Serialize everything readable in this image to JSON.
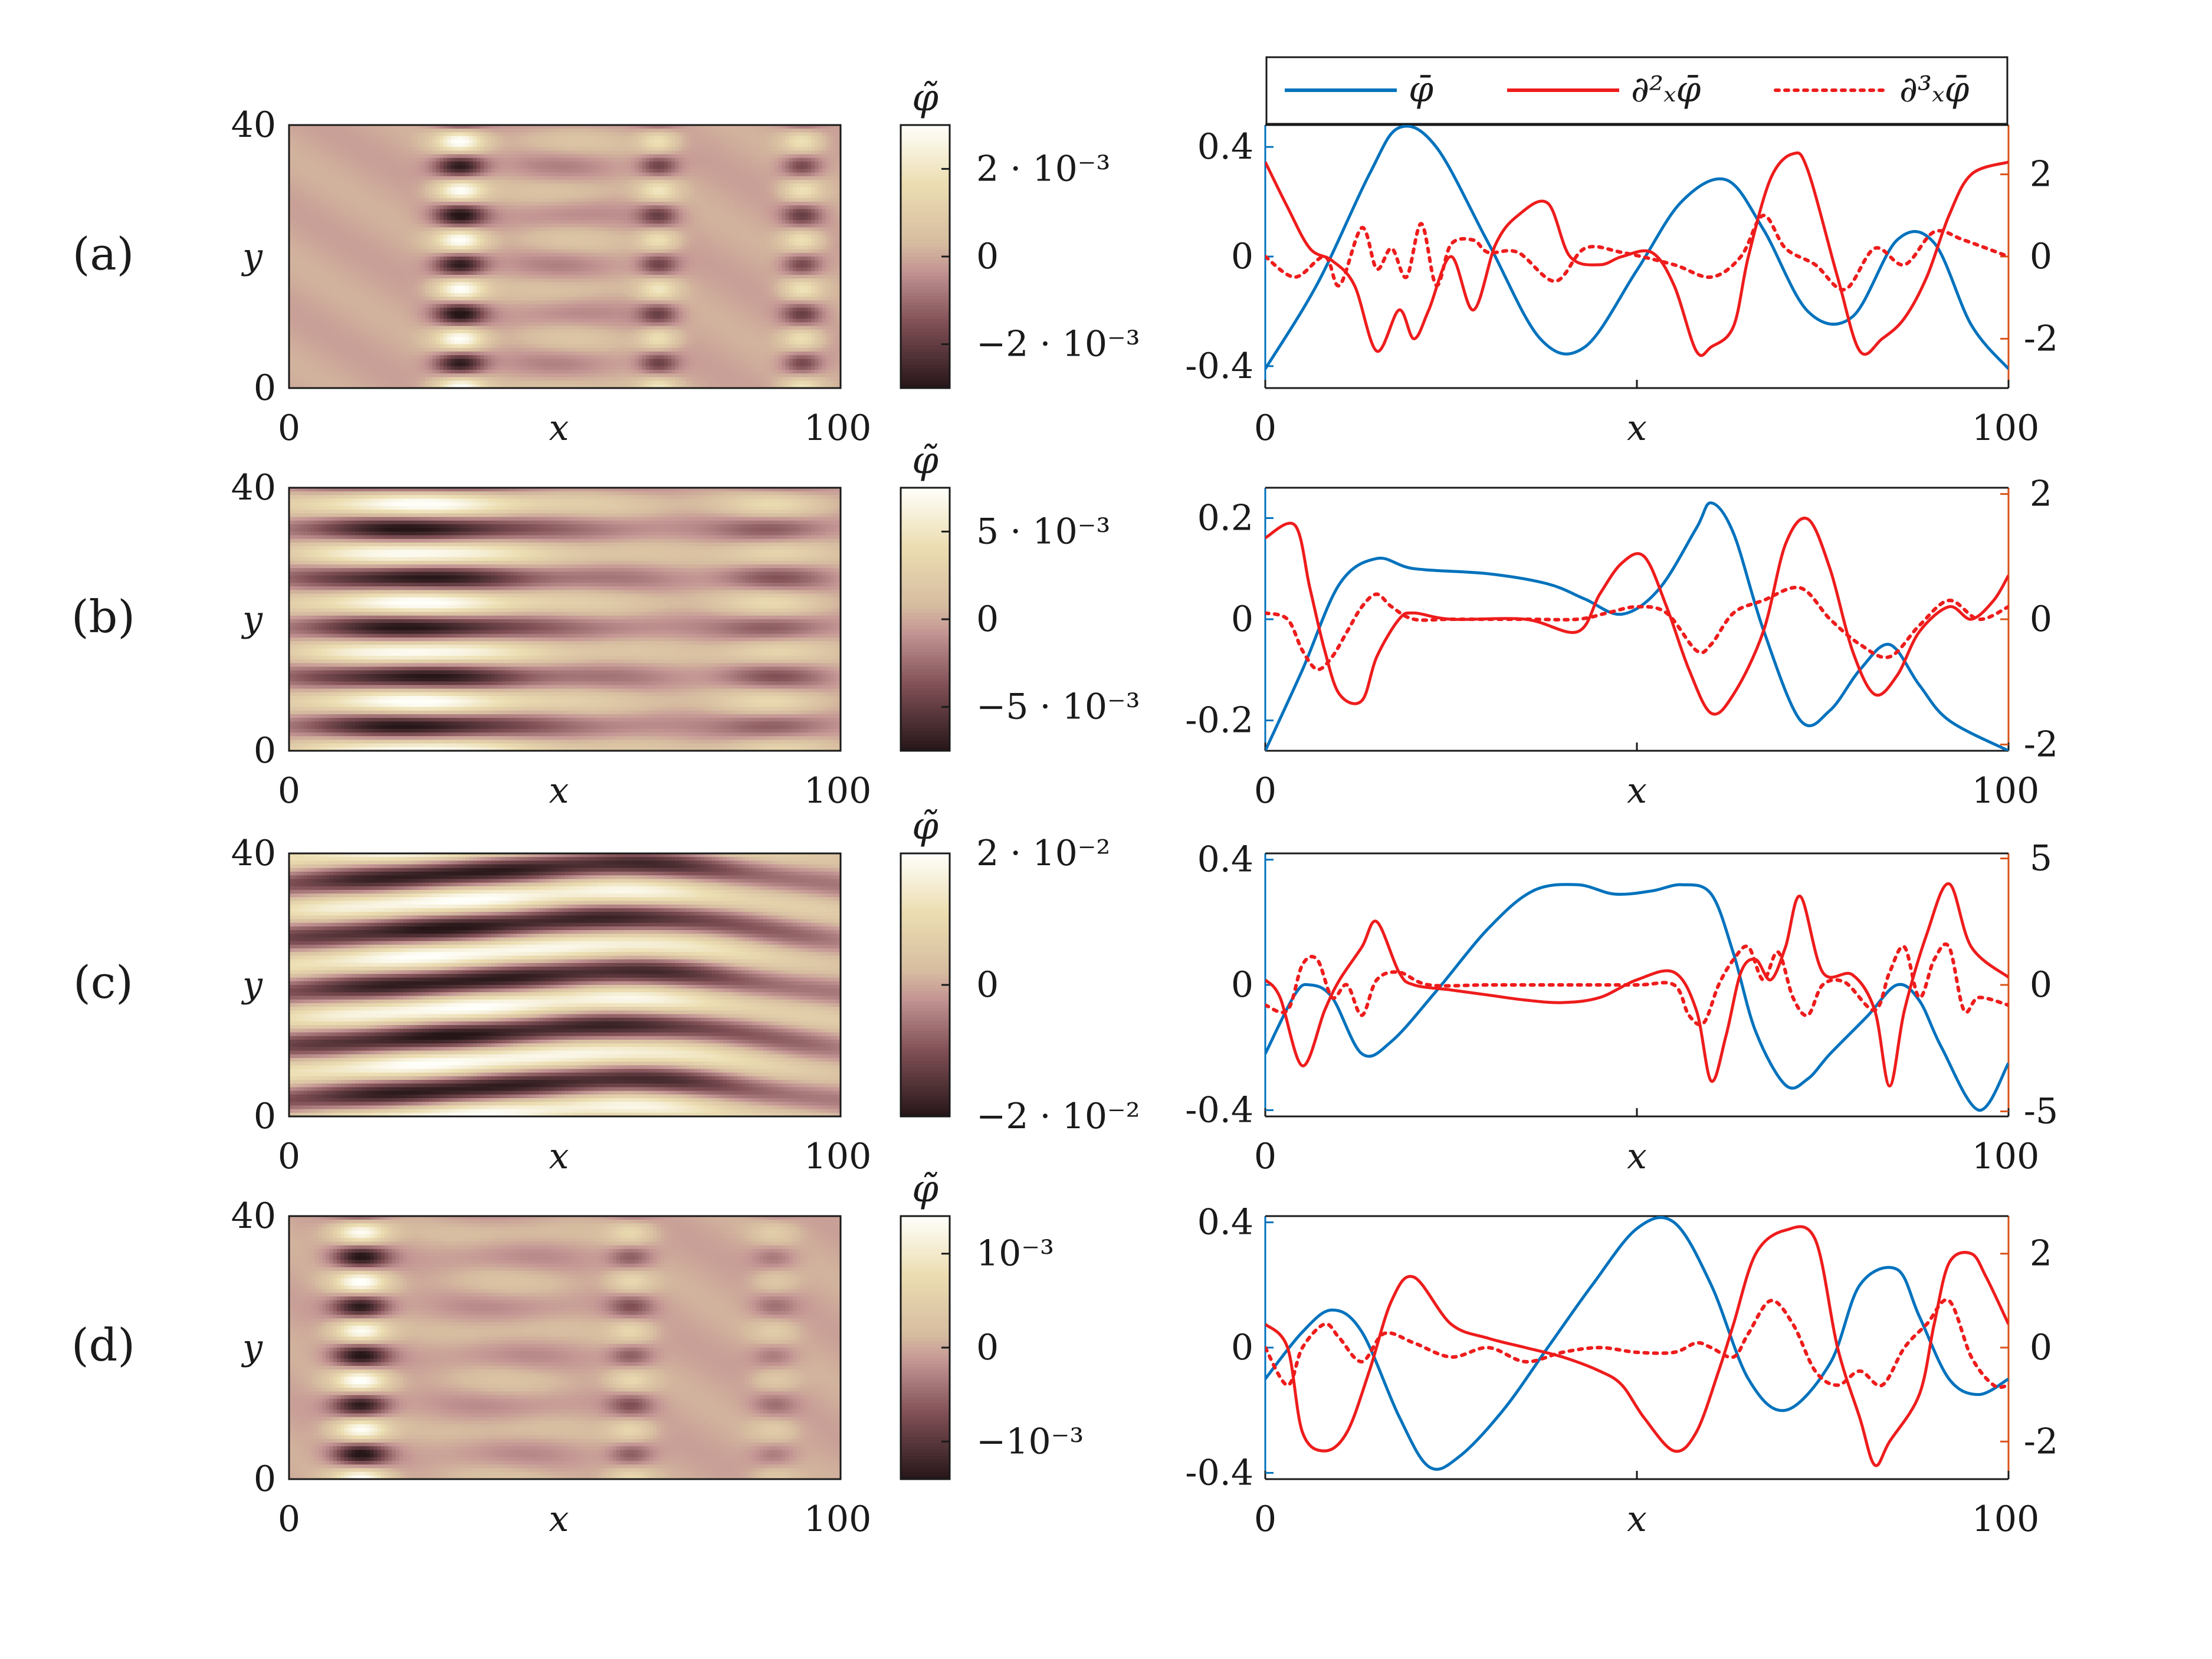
{
  "figure": {
    "rows": [
      {
        "label": "(a)"
      },
      {
        "label": "(b)"
      },
      {
        "label": "(c)"
      },
      {
        "label": "(d)"
      }
    ],
    "legend": {
      "phi_bar": "φ̄",
      "d2": "∂²ₓφ̄",
      "d3": "∂³ₓφ̄"
    },
    "colors": {
      "blue": "#0072BD",
      "red": "#EE1C1C",
      "orange_axis": "#D95319",
      "axis": "#1a1a1a"
    }
  },
  "chart_data": [
    {
      "type": "heatmap",
      "panel": "a-map",
      "xlabel": "x",
      "ylabel": "y",
      "xlim": [
        0,
        100
      ],
      "ylim": [
        0,
        40
      ],
      "x_ticks": [
        "0",
        "100"
      ],
      "y_ticks": [
        "0",
        "40"
      ],
      "colorbar": {
        "title": "φ̃",
        "ticks": [
          "2 · 10⁻³",
          "0",
          "−2 · 10⁻³"
        ],
        "range": [
          -0.003,
          0.003
        ]
      },
      "bands": [
        {
          "x": 31,
          "width": 4.5,
          "amp": 1.0,
          "ky": 7.5,
          "tilt": 0.0
        },
        {
          "x": 67,
          "width": 3.5,
          "amp": 0.6,
          "ky": 7.5,
          "tilt": 0.0
        },
        {
          "x": 93,
          "width": 3.5,
          "amp": 0.6,
          "ky": 7.5,
          "tilt": 0.0
        },
        {
          "x": 50,
          "width": 12,
          "amp": 0.18,
          "ky": 7.5,
          "tilt": 0.0
        }
      ]
    },
    {
      "type": "line",
      "panel": "a-profile",
      "xlabel": "x",
      "xlim": [
        0,
        100
      ],
      "x_ticks": [
        "0",
        "100"
      ],
      "y_left": {
        "range": [
          -0.48,
          0.48
        ],
        "ticks": [
          "0.4",
          "0",
          "-0.4"
        ]
      },
      "y_right": {
        "range": [
          -3.2,
          3.2
        ],
        "ticks": [
          "2",
          "0",
          "-2"
        ]
      },
      "series": [
        {
          "name": "φ̄",
          "axis": "left",
          "style": "solid-blue",
          "x": [
            0,
            7,
            14,
            18,
            23,
            30,
            37,
            43,
            50,
            56,
            62,
            67,
            73,
            79,
            85,
            90,
            95,
            100
          ],
          "y": [
            -0.41,
            -0.1,
            0.3,
            0.47,
            0.4,
            0.05,
            -0.3,
            -0.33,
            -0.05,
            0.2,
            0.28,
            0.1,
            -0.2,
            -0.22,
            0.06,
            0.05,
            -0.25,
            -0.41
          ]
        },
        {
          "name": "∂²ₓφ̄",
          "axis": "right",
          "style": "solid-red",
          "x": [
            0,
            3,
            6,
            9,
            12,
            15,
            18,
            20,
            22,
            25,
            28,
            31,
            34,
            38,
            41,
            45,
            48,
            52,
            55,
            58,
            60,
            63,
            65,
            68,
            71,
            73,
            77,
            80,
            83,
            86,
            89,
            92,
            95,
            100
          ],
          "y": [
            2.3,
            1.2,
            0.2,
            -0.1,
            -0.7,
            -2.3,
            -1.3,
            -2.0,
            -1.3,
            0,
            -1.3,
            0.3,
            1.0,
            1.3,
            0,
            -0.2,
            0,
            0.1,
            -0.7,
            -2.3,
            -2.2,
            -1.7,
            0,
            1.9,
            2.5,
            2.1,
            -0.5,
            -2.3,
            -2.0,
            -1.5,
            -0.5,
            1.0,
            2.0,
            2.3
          ]
        },
        {
          "name": "∂³ₓφ̄",
          "axis": "right",
          "style": "dotted-red",
          "x": [
            0,
            4,
            8,
            10,
            13,
            15,
            17,
            19,
            21,
            23,
            25,
            28,
            30,
            34,
            39,
            43,
            48,
            55,
            60,
            64,
            67,
            70,
            74,
            78,
            82,
            86,
            90,
            94,
            100
          ],
          "y": [
            0,
            -0.5,
            0,
            -0.7,
            0.7,
            -0.3,
            0.2,
            -0.5,
            0.8,
            -0.7,
            0.3,
            0.4,
            0.1,
            0.1,
            -0.6,
            0.2,
            0.1,
            -0.2,
            -0.5,
            0,
            1.0,
            0.2,
            -0.2,
            -0.8,
            0.2,
            -0.2,
            0.6,
            0.4,
            0
          ]
        }
      ]
    },
    {
      "type": "heatmap",
      "panel": "b-map",
      "xlabel": "x",
      "ylabel": "y",
      "xlim": [
        0,
        100
      ],
      "ylim": [
        0,
        40
      ],
      "x_ticks": [
        "0",
        "100"
      ],
      "y_ticks": [
        "0",
        "40"
      ],
      "colorbar": {
        "title": "φ̃",
        "ticks": [
          "5 · 10⁻³",
          "0",
          "−5 · 10⁻³"
        ],
        "range": [
          -0.0075,
          0.0075
        ]
      },
      "bands": [
        {
          "x": 23,
          "width": 22,
          "amp": 1.0,
          "ky": 7.5,
          "tilt": 0.0
        },
        {
          "x": 88,
          "width": 10,
          "amp": 0.45,
          "ky": 7.5,
          "tilt": 0.0
        },
        {
          "x": 60,
          "width": 16,
          "amp": 0.18,
          "ky": 7.5,
          "tilt": 0.0
        }
      ]
    },
    {
      "type": "line",
      "panel": "b-profile",
      "xlabel": "x",
      "xlim": [
        0,
        100
      ],
      "x_ticks": [
        "0",
        "100"
      ],
      "y_left": {
        "range": [
          -0.26,
          0.26
        ],
        "ticks": [
          "0.2",
          "0",
          "-0.2"
        ]
      },
      "y_right": {
        "range": [
          -2.1,
          2.1
        ],
        "ticks": [
          "2",
          "0",
          "-2"
        ]
      },
      "series": [
        {
          "name": "φ̄",
          "axis": "left",
          "style": "solid-blue",
          "x": [
            0,
            5,
            10,
            15,
            20,
            30,
            38,
            43,
            48,
            53,
            58,
            60,
            63,
            67,
            72,
            76,
            80,
            84,
            88,
            92,
            100
          ],
          "y": [
            -0.26,
            -0.1,
            0.07,
            0.12,
            0.1,
            0.09,
            0.07,
            0.04,
            0.01,
            0.06,
            0.18,
            0.23,
            0.17,
            -0.02,
            -0.2,
            -0.18,
            -0.1,
            -0.05,
            -0.13,
            -0.2,
            -0.26
          ]
        },
        {
          "name": "∂²ₓφ̄",
          "axis": "right",
          "style": "solid-red",
          "x": [
            0,
            4,
            6,
            8,
            10,
            13,
            15,
            18,
            20,
            25,
            35,
            42,
            45,
            48,
            51,
            54,
            57,
            60,
            63,
            67,
            70,
            73,
            76,
            79,
            82,
            85,
            88,
            92,
            95,
            98,
            100
          ],
          "y": [
            1.3,
            1.5,
            0.5,
            -0.5,
            -1.2,
            -1.3,
            -0.6,
            0,
            0.1,
            0,
            0,
            -0.2,
            0.4,
            0.9,
            1.0,
            0.2,
            -0.8,
            -1.5,
            -1.2,
            -0.2,
            1.2,
            1.6,
            0.8,
            -0.5,
            -1.2,
            -0.9,
            -0.2,
            0.2,
            0.0,
            0.3,
            0.7
          ]
        },
        {
          "name": "∂³ₓφ̄",
          "axis": "right",
          "style": "dotted-red",
          "x": [
            0,
            3,
            5,
            7,
            9,
            11,
            13,
            15,
            17,
            20,
            25,
            35,
            42,
            46,
            50,
            54,
            58,
            60,
            63,
            67,
            72,
            76,
            80,
            84,
            88,
            92,
            96,
            100
          ],
          "y": [
            0.1,
            0.0,
            -0.5,
            -0.8,
            -0.6,
            -0.2,
            0.2,
            0.4,
            0.2,
            0,
            0,
            0,
            0,
            0.1,
            0.2,
            0.1,
            -0.5,
            -0.4,
            0.1,
            0.3,
            0.5,
            0,
            -0.4,
            -0.6,
            -0.1,
            0.3,
            0,
            0.2
          ]
        }
      ]
    },
    {
      "type": "heatmap",
      "panel": "c-map",
      "xlabel": "x",
      "ylabel": "y",
      "xlim": [
        0,
        100
      ],
      "ylim": [
        0,
        40
      ],
      "x_ticks": [
        "0",
        "100"
      ],
      "y_ticks": [
        "0",
        "40"
      ],
      "colorbar": {
        "title": "φ̃",
        "ticks": [
          "2 · 10⁻²",
          "0",
          "−2 · 10⁻²"
        ],
        "range": [
          -0.02,
          0.02
        ]
      },
      "bands": [
        {
          "x": 30,
          "width": 40,
          "amp": 1.0,
          "ky": 8.2,
          "tilt": 0.05
        },
        {
          "x": 80,
          "width": 25,
          "amp": 0.55,
          "ky": 8.2,
          "tilt": -0.08
        }
      ]
    },
    {
      "type": "line",
      "panel": "c-profile",
      "xlabel": "x",
      "xlim": [
        0,
        100
      ],
      "x_ticks": [
        "0",
        "100"
      ],
      "y_left": {
        "range": [
          -0.42,
          0.42
        ],
        "ticks": [
          "0.4",
          "0",
          "-0.4"
        ]
      },
      "y_right": {
        "range": [
          -5.2,
          5.2
        ],
        "ticks": [
          "5",
          "0",
          "-5"
        ]
      },
      "series": [
        {
          "name": "φ̄",
          "axis": "left",
          "style": "solid-blue",
          "x": [
            0,
            4,
            6,
            9,
            13,
            17,
            23,
            30,
            36,
            42,
            47,
            52,
            56,
            60,
            63,
            66,
            70,
            73,
            76,
            81,
            85,
            88,
            91,
            96,
            100
          ],
          "y": [
            -0.22,
            -0.03,
            0.0,
            -0.04,
            -0.22,
            -0.18,
            -0.02,
            0.18,
            0.3,
            0.32,
            0.29,
            0.3,
            0.32,
            0.29,
            0.1,
            -0.15,
            -0.32,
            -0.3,
            -0.22,
            -0.1,
            0.0,
            -0.05,
            -0.2,
            -0.4,
            -0.25
          ]
        },
        {
          "name": "∂²ₓφ̄",
          "axis": "right",
          "style": "solid-red",
          "x": [
            0,
            2,
            5,
            8,
            10,
            13,
            15,
            18,
            20,
            25,
            30,
            35,
            40,
            45,
            50,
            55,
            58,
            60,
            62,
            64,
            66,
            68,
            70,
            72,
            75,
            79,
            82,
            84,
            86,
            89,
            92,
            95,
            100
          ],
          "y": [
            0.2,
            -0.5,
            -3.2,
            -1.0,
            0.2,
            1.5,
            2.5,
            0.5,
            0.0,
            -0.2,
            -0.4,
            -0.6,
            -0.7,
            -0.5,
            0.2,
            0.5,
            -1.0,
            -3.8,
            -2.0,
            0.5,
            1.0,
            0.2,
            1.5,
            3.5,
            0.5,
            0.4,
            -1.0,
            -4.0,
            -1.0,
            2.0,
            4.0,
            1.5,
            0.3
          ]
        },
        {
          "name": "∂³ₓφ̄",
          "axis": "right",
          "style": "dotted-red",
          "x": [
            0,
            3,
            5,
            7,
            9,
            11,
            13,
            15,
            18,
            22,
            30,
            40,
            50,
            55,
            57,
            59,
            61,
            63,
            65,
            67,
            69,
            71,
            73,
            75,
            78,
            82,
            84,
            86,
            88,
            90,
            92,
            94,
            96,
            100
          ],
          "y": [
            -0.8,
            -1.0,
            0.8,
            1.0,
            -0.5,
            0.0,
            -1.2,
            0.2,
            0.5,
            0.0,
            0.0,
            0.0,
            0.0,
            0.0,
            -1.2,
            -1.5,
            0.0,
            1.0,
            1.5,
            0.2,
            1.3,
            -0.5,
            -1.2,
            0.0,
            0.1,
            -1.0,
            0.5,
            1.5,
            -0.5,
            1.0,
            1.5,
            -1.0,
            -0.5,
            -0.8
          ]
        }
      ]
    },
    {
      "type": "heatmap",
      "panel": "d-map",
      "xlabel": "x",
      "ylabel": "y",
      "xlim": [
        0,
        100
      ],
      "ylim": [
        0,
        40
      ],
      "x_ticks": [
        "0",
        "100"
      ],
      "y_ticks": [
        "0",
        "40"
      ],
      "colorbar": {
        "title": "φ̃",
        "ticks": [
          "10⁻³",
          "0",
          "−10⁻³"
        ],
        "range": [
          -0.0014,
          0.0014
        ]
      },
      "bands": [
        {
          "x": 13,
          "width": 5,
          "amp": 1.0,
          "ky": 7.5,
          "tilt": 0.0
        },
        {
          "x": 62,
          "width": 4,
          "amp": 0.45,
          "ky": 7.5,
          "tilt": 0.0
        },
        {
          "x": 88,
          "width": 4,
          "amp": 0.28,
          "ky": 7.5,
          "tilt": 0.0
        },
        {
          "x": 40,
          "width": 15,
          "amp": 0.14,
          "ky": 7.5,
          "tilt": 0.0
        }
      ]
    },
    {
      "type": "line",
      "panel": "d-profile",
      "xlabel": "x",
      "xlim": [
        0,
        100
      ],
      "x_ticks": [
        "0",
        "100"
      ],
      "y_left": {
        "range": [
          -0.42,
          0.42
        ],
        "ticks": [
          "0.4",
          "0",
          "-0.4"
        ]
      },
      "y_right": {
        "range": [
          -2.8,
          2.8
        ],
        "ticks": [
          "2",
          "0",
          "-2"
        ]
      },
      "series": [
        {
          "name": "φ̄",
          "axis": "left",
          "style": "solid-blue",
          "x": [
            0,
            5,
            9,
            13,
            18,
            22,
            26,
            32,
            38,
            44,
            50,
            55,
            60,
            65,
            70,
            76,
            80,
            85,
            88,
            92,
            96,
            100
          ],
          "y": [
            -0.1,
            0.05,
            0.12,
            0.05,
            -0.22,
            -0.38,
            -0.35,
            -0.2,
            0.0,
            0.2,
            0.38,
            0.4,
            0.2,
            -0.1,
            -0.2,
            -0.05,
            0.2,
            0.25,
            0.1,
            -0.1,
            -0.15,
            -0.1
          ]
        },
        {
          "name": "∂²ₓφ̄",
          "axis": "right",
          "style": "solid-red",
          "x": [
            0,
            3,
            5,
            8,
            11,
            14,
            17,
            20,
            25,
            30,
            35,
            40,
            45,
            48,
            51,
            55,
            58,
            61,
            63,
            66,
            70,
            74,
            77,
            80,
            82,
            84,
            88,
            90,
            92,
            95,
            97,
            100
          ],
          "y": [
            0.5,
            0.0,
            -1.8,
            -2.2,
            -1.8,
            -0.5,
            1.0,
            1.5,
            0.5,
            0.2,
            0.0,
            -0.2,
            -0.5,
            -0.8,
            -1.5,
            -2.2,
            -1.8,
            -0.5,
            0.5,
            2.0,
            2.5,
            2.3,
            0.0,
            -1.5,
            -2.5,
            -2.0,
            -1.0,
            0.5,
            1.8,
            2.0,
            1.5,
            0.5
          ]
        },
        {
          "name": "∂³ₓφ̄",
          "axis": "right",
          "style": "dotted-red",
          "x": [
            0,
            3,
            5,
            8,
            10,
            13,
            16,
            20,
            25,
            30,
            35,
            40,
            45,
            50,
            55,
            58,
            60,
            63,
            65,
            68,
            71,
            74,
            77,
            80,
            83,
            86,
            89,
            92,
            95,
            98,
            100
          ],
          "y": [
            0.0,
            -0.8,
            0.0,
            0.5,
            0.2,
            -0.3,
            0.3,
            0.1,
            -0.2,
            0.0,
            -0.3,
            -0.1,
            0.0,
            -0.1,
            -0.1,
            0.1,
            0.0,
            -0.2,
            0.3,
            1.0,
            0.5,
            -0.5,
            -0.8,
            -0.5,
            -0.8,
            0.0,
            0.5,
            1.0,
            -0.2,
            -0.8,
            -0.8
          ]
        }
      ]
    }
  ]
}
